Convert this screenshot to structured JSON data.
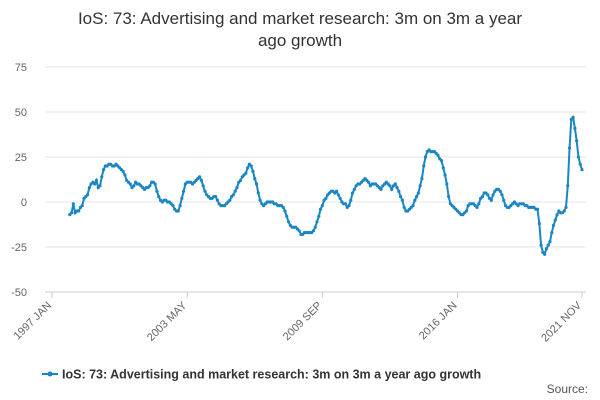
{
  "chart_data": {
    "type": "line",
    "title": [
      "IoS: 73: Advertising and market research: 3m on 3m a year",
      "ago growth"
    ],
    "source": "Source:",
    "legend": "bottom",
    "grid": true,
    "ylim": [
      -50,
      75
    ],
    "yticks": [
      -50,
      -25,
      0,
      25,
      50,
      75
    ],
    "categories": [
      "1997 JAN",
      null,
      null,
      null,
      null,
      null,
      null,
      null,
      null,
      null,
      null,
      null,
      null,
      null,
      null,
      null,
      null,
      null,
      null,
      null,
      null,
      null,
      null,
      null,
      null,
      null,
      null,
      null,
      null,
      null,
      null,
      null,
      null,
      null,
      null,
      null,
      null,
      null,
      null,
      null,
      null,
      null,
      null,
      null,
      null,
      null,
      null,
      null,
      null,
      null,
      null,
      null,
      null,
      null,
      null,
      null,
      null,
      null,
      null,
      null,
      null,
      null,
      null,
      null,
      null,
      null,
      null,
      null,
      null,
      null,
      null,
      null,
      null,
      null,
      null,
      null,
      "2003 MAY",
      null,
      null,
      null,
      null,
      null,
      null,
      null,
      null,
      null,
      null,
      null,
      null,
      null,
      null,
      null,
      null,
      null,
      null,
      null,
      null,
      null,
      null,
      null,
      null,
      null,
      null,
      null,
      null,
      null,
      null,
      null,
      null,
      null,
      null,
      null,
      null,
      null,
      null,
      null,
      null,
      null,
      null,
      null,
      null,
      null,
      null,
      null,
      null,
      null,
      null,
      null,
      null,
      null,
      null,
      null,
      null,
      null,
      null,
      null,
      null,
      null,
      null,
      null,
      null,
      null,
      null,
      null,
      null,
      null,
      null,
      null,
      null,
      null,
      null,
      null,
      "2009 SEP",
      null,
      null,
      null,
      null,
      null,
      null,
      null,
      null,
      null,
      null,
      null,
      null,
      null,
      null,
      null,
      null,
      null,
      null,
      null,
      null,
      null,
      null,
      null,
      null,
      null,
      null,
      null,
      null,
      null,
      null,
      null,
      null,
      null,
      null,
      null,
      null,
      null,
      null,
      null,
      null,
      null,
      null,
      null,
      null,
      null,
      null,
      null,
      null,
      null,
      null,
      null,
      null,
      null,
      null,
      null,
      null,
      null,
      null,
      null,
      null,
      null,
      null,
      null,
      null,
      null,
      null,
      null,
      null,
      null,
      null,
      null,
      null,
      null,
      null,
      null,
      "2016 JAN",
      null,
      null,
      null,
      null,
      null,
      null,
      null,
      null,
      null,
      null,
      null,
      null,
      null,
      null,
      null,
      null,
      null,
      null,
      null,
      null,
      null,
      null,
      null,
      null,
      null,
      null,
      null,
      null,
      null,
      null,
      null,
      null,
      null,
      null,
      null,
      null,
      null,
      null,
      null,
      null,
      null,
      null,
      null,
      null,
      null,
      null,
      null,
      null,
      null,
      null,
      null,
      null,
      null,
      null,
      null,
      null,
      null,
      null,
      null,
      null,
      null,
      null,
      null,
      null,
      null,
      null,
      null,
      null,
      null,
      "2021 NOV"
    ],
    "series": [
      {
        "name": "IoS: 73: Advertising and market research: 3m on 3m a year ago growth",
        "color": "#1a86c4",
        "values": [
          null,
          null,
          null,
          null,
          null,
          null,
          null,
          null,
          null,
          null,
          -7,
          -6,
          -1,
          -6,
          -5,
          -5,
          -3,
          -2,
          2,
          3,
          4,
          8,
          10,
          11,
          10,
          12,
          8,
          9,
          14,
          18,
          20,
          20,
          21,
          21,
          20,
          20,
          21,
          20,
          19,
          18,
          17,
          15,
          12,
          11,
          10,
          8,
          9,
          11,
          10,
          10,
          9,
          8,
          7,
          8,
          8,
          9,
          11,
          11,
          10,
          6,
          3,
          1,
          0,
          1,
          1,
          0,
          0,
          -1,
          -2,
          -4,
          -5,
          -5,
          -2,
          2,
          6,
          10,
          11,
          11,
          11,
          10,
          11,
          12,
          13,
          14,
          12,
          9,
          6,
          4,
          3,
          2,
          2,
          3,
          3,
          1,
          -1,
          -2,
          -2,
          -2,
          -1,
          0,
          1,
          3,
          4,
          6,
          8,
          11,
          12,
          14,
          15,
          16,
          19,
          21,
          20,
          17,
          13,
          10,
          5,
          1,
          -1,
          -2,
          -1,
          0,
          0,
          0,
          0,
          -1,
          -1,
          -2,
          -2,
          -2,
          -3,
          -5,
          -8,
          -11,
          -13,
          -14,
          -14,
          -14,
          -15,
          -16,
          -18,
          -18,
          -17,
          -17,
          -17,
          -17,
          -17,
          -16,
          -14,
          -11,
          -8,
          -4,
          -2,
          1,
          2,
          4,
          5,
          6,
          6,
          5,
          6,
          4,
          2,
          0,
          -1,
          -1,
          -3,
          -2,
          1,
          5,
          7,
          9,
          10,
          10,
          11,
          12,
          13,
          12,
          11,
          9,
          10,
          10,
          10,
          9,
          8,
          7,
          9,
          10,
          11,
          10,
          9,
          7,
          9,
          10,
          8,
          6,
          3,
          1,
          -3,
          -5,
          -5,
          -4,
          -3,
          -2,
          1,
          3,
          5,
          9,
          13,
          20,
          25,
          28,
          29,
          28,
          28,
          28,
          27,
          26,
          24,
          23,
          19,
          15,
          10,
          3,
          -1,
          -2,
          -3,
          -4,
          -5,
          -6,
          -7,
          -7,
          -6,
          -5,
          -2,
          -1,
          -1,
          -1,
          -2,
          -3,
          -1,
          2,
          3,
          5,
          5,
          4,
          2,
          1,
          4,
          6,
          7,
          7,
          6,
          4,
          1,
          -2,
          -3,
          -3,
          -2,
          -1,
          0,
          -1,
          -2,
          -1,
          -1,
          -1,
          -2,
          -2,
          -3,
          -3,
          -3,
          -3,
          -4,
          -4,
          -12,
          -24,
          -28,
          -29,
          -26,
          -24,
          -22,
          -17,
          -13,
          -10,
          -7,
          -5,
          -6,
          -6,
          -5,
          -3,
          9,
          30,
          46,
          47,
          41,
          34,
          25,
          21,
          18
        ]
      }
    ]
  }
}
